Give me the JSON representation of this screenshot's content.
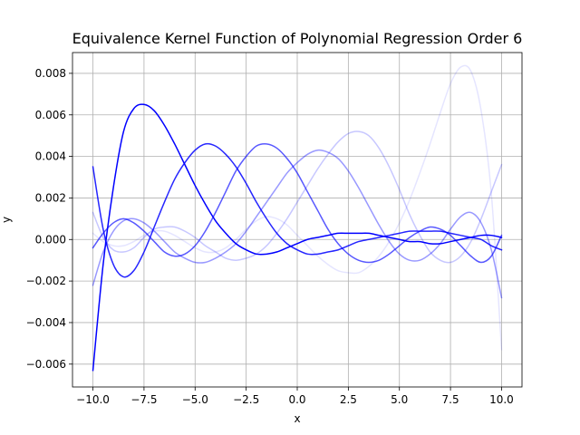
{
  "chart_data": {
    "type": "line",
    "title": "Equivalence Kernel Function of Polynomial Regression Order 6",
    "xlabel": "x",
    "ylabel": "y",
    "xlim": [
      -11.0,
      11.0
    ],
    "ylim": [
      -0.0071,
      0.009
    ],
    "grid": true,
    "legend": "none",
    "x_ticks": [
      -10.0,
      -7.5,
      -5.0,
      -2.5,
      0.0,
      2.5,
      5.0,
      7.5,
      10.0
    ],
    "x_tick_labels": [
      "−10.0",
      "−7.5",
      "−5.0",
      "−2.5",
      "0.0",
      "2.5",
      "5.0",
      "7.5",
      "10.0"
    ],
    "y_ticks": [
      -0.006,
      -0.004,
      -0.002,
      0.0,
      0.002,
      0.004,
      0.006,
      0.008
    ],
    "y_tick_labels": [
      "−0.006",
      "−0.004",
      "−0.002",
      "0.000",
      "0.002",
      "0.004",
      "0.006",
      "0.008"
    ],
    "series": [
      {
        "color": "#0000ff",
        "opacity": 1.0,
        "x": [
          -10,
          -9.5,
          -9,
          -8.5,
          -8,
          -7.5,
          -7,
          -6.5,
          -6,
          -5.5,
          -5,
          -4.5,
          -4,
          -3.5,
          -3,
          -2.5,
          -2,
          -1.5,
          -1,
          -0.5,
          0,
          0.5,
          1,
          1.5,
          2,
          2.5,
          3,
          3.5,
          4,
          4.5,
          5,
          5.5,
          6,
          6.5,
          7,
          7.5,
          8,
          8.5,
          9,
          9.5,
          10
        ],
        "y": [
          -0.0063,
          -0.0012,
          0.0025,
          0.0052,
          0.0063,
          0.0065,
          0.0062,
          0.0055,
          0.0046,
          0.0036,
          0.0026,
          0.0017,
          0.0009,
          0.0003,
          -0.0002,
          -0.0005,
          -0.0007,
          -0.0007,
          -0.0006,
          -0.0004,
          -0.0002,
          0.0,
          0.0001,
          0.0002,
          0.0003,
          0.0003,
          0.0003,
          0.0003,
          0.0002,
          0.0001,
          0.0,
          -0.0001,
          -0.0001,
          -0.0002,
          -0.0002,
          -0.0001,
          0.0,
          0.0001,
          0.0002,
          0.0002,
          0.0001
        ]
      },
      {
        "color": "#0000ff",
        "opacity": 0.85,
        "x": [
          -10,
          -9.5,
          -9,
          -8.5,
          -8,
          -7.5,
          -7,
          -6.5,
          -6,
          -5.5,
          -5,
          -4.5,
          -4,
          -3.5,
          -3,
          -2.5,
          -2,
          -1.5,
          -1,
          -0.5,
          0,
          0.5,
          1,
          1.5,
          2,
          2.5,
          3,
          3.5,
          4,
          4.5,
          5,
          5.5,
          6,
          6.5,
          7,
          7.5,
          8,
          8.5,
          9,
          9.5,
          10
        ],
        "y": [
          0.0035,
          0.0005,
          -0.0012,
          -0.0018,
          -0.0015,
          -0.0006,
          0.0006,
          0.0018,
          0.0029,
          0.0037,
          0.0043,
          0.0046,
          0.0045,
          0.0041,
          0.0035,
          0.0027,
          0.0018,
          0.001,
          0.0003,
          -0.0002,
          -0.0005,
          -0.0007,
          -0.0007,
          -0.0006,
          -0.0005,
          -0.0003,
          -0.0001,
          0.0,
          0.0001,
          0.0002,
          0.0003,
          0.0004,
          0.0004,
          0.0004,
          0.0004,
          0.0003,
          0.0002,
          0.0001,
          0.0,
          -0.0003,
          -0.0005
        ]
      },
      {
        "color": "#0000ff",
        "opacity": 0.65,
        "x": [
          -10,
          -9.5,
          -9,
          -8.5,
          -8,
          -7.5,
          -7,
          -6.5,
          -6,
          -5.5,
          -5,
          -4.5,
          -4,
          -3.5,
          -3,
          -2.5,
          -2,
          -1.5,
          -1,
          -0.5,
          0,
          0.5,
          1,
          1.5,
          2,
          2.5,
          3,
          3.5,
          4,
          4.5,
          5,
          5.5,
          6,
          6.5,
          7,
          7.5,
          8,
          8.5,
          9,
          9.5,
          10
        ],
        "y": [
          -0.0004,
          0.0003,
          0.0008,
          0.001,
          0.0008,
          0.0004,
          -0.0001,
          -0.0006,
          -0.0008,
          -0.0007,
          -0.0003,
          0.0004,
          0.0013,
          0.0023,
          0.0033,
          0.004,
          0.0045,
          0.0046,
          0.0044,
          0.0039,
          0.0032,
          0.0023,
          0.0014,
          0.0005,
          -0.0002,
          -0.0007,
          -0.001,
          -0.0011,
          -0.001,
          -0.0007,
          -0.0003,
          0.0001,
          0.0004,
          0.0006,
          0.0005,
          0.0002,
          -0.0003,
          -0.0008,
          -0.0011,
          -0.0008,
          0.0002
        ]
      },
      {
        "color": "#0000ff",
        "opacity": 0.4,
        "x": [
          -10,
          -9.5,
          -9,
          -8.5,
          -8,
          -7.5,
          -7,
          -6.5,
          -6,
          -5.5,
          -5,
          -4.5,
          -4,
          -3.5,
          -3,
          -2.5,
          -2,
          -1.5,
          -1,
          -0.5,
          0,
          0.5,
          1,
          1.5,
          2,
          2.5,
          3,
          3.5,
          4,
          4.5,
          5,
          5.5,
          6,
          6.5,
          7,
          7.5,
          8,
          8.5,
          9,
          9.5,
          10
        ],
        "y": [
          -0.0022,
          -0.0006,
          0.0004,
          0.0009,
          0.001,
          0.0008,
          0.0004,
          -0.0001,
          -0.0006,
          -0.0009,
          -0.0011,
          -0.0011,
          -0.0009,
          -0.0006,
          -0.0002,
          0.0004,
          0.0011,
          0.0018,
          0.0025,
          0.0032,
          0.0037,
          0.0041,
          0.0043,
          0.0042,
          0.0039,
          0.0033,
          0.0025,
          0.0016,
          0.0007,
          -0.0001,
          -0.0007,
          -0.001,
          -0.001,
          -0.0007,
          -0.0002,
          0.0005,
          0.0011,
          0.0013,
          0.0008,
          -0.0005,
          -0.0028
        ]
      },
      {
        "color": "#0000ff",
        "opacity": 0.22,
        "x": [
          -10,
          -9.5,
          -9,
          -8.5,
          -8,
          -7.5,
          -7,
          -6.5,
          -6,
          -5.5,
          -5,
          -4.5,
          -4,
          -3.5,
          -3,
          -2.5,
          -2,
          -1.5,
          -1,
          -0.5,
          0,
          0.5,
          1,
          1.5,
          2,
          2.5,
          3,
          3.5,
          4,
          4.5,
          5,
          5.5,
          6,
          6.5,
          7,
          7.5,
          8,
          8.5,
          9,
          9.5,
          10
        ],
        "y": [
          0.0013,
          0.0001,
          -0.0005,
          -0.0006,
          -0.0004,
          0.0001,
          0.0005,
          0.0006,
          0.0006,
          0.0004,
          0.0001,
          -0.0003,
          -0.0006,
          -0.0009,
          -0.001,
          -0.0009,
          -0.0007,
          -0.0003,
          0.0003,
          0.001,
          0.0018,
          0.0026,
          0.0034,
          0.0041,
          0.0047,
          0.0051,
          0.0052,
          0.005,
          0.0044,
          0.0035,
          0.0024,
          0.0012,
          0.0002,
          -0.0006,
          -0.001,
          -0.0011,
          -0.0008,
          -0.0001,
          0.001,
          0.0023,
          0.0036
        ]
      },
      {
        "color": "#0000ff",
        "opacity": 0.1,
        "x": [
          -10,
          -9.5,
          -9,
          -8.5,
          -8,
          -7.5,
          -7,
          -6.5,
          -6,
          -5.5,
          -5,
          -4.5,
          -4,
          -3.5,
          -3,
          -2.5,
          -2,
          -1.5,
          -1,
          -0.5,
          0,
          0.5,
          1,
          1.5,
          2,
          2.5,
          3,
          3.5,
          4,
          4.5,
          5,
          5.5,
          6,
          6.5,
          7,
          7.5,
          8,
          8.5,
          9,
          9.5,
          10
        ],
        "y": [
          0.0003,
          -0.0001,
          -0.0003,
          -0.0003,
          -0.0001,
          0.0002,
          0.0004,
          0.0004,
          0.0002,
          -0.0001,
          -0.0004,
          -0.0006,
          -0.0006,
          -0.0004,
          0.0,
          0.0005,
          0.0009,
          0.0011,
          0.001,
          0.0007,
          0.0002,
          -0.0003,
          -0.0008,
          -0.0012,
          -0.0015,
          -0.0016,
          -0.0016,
          -0.0013,
          -0.0008,
          -0.0001,
          0.0008,
          0.0019,
          0.0032,
          0.0046,
          0.0061,
          0.0075,
          0.0083,
          0.0081,
          0.0062,
          0.0022,
          -0.0053
        ]
      }
    ]
  }
}
